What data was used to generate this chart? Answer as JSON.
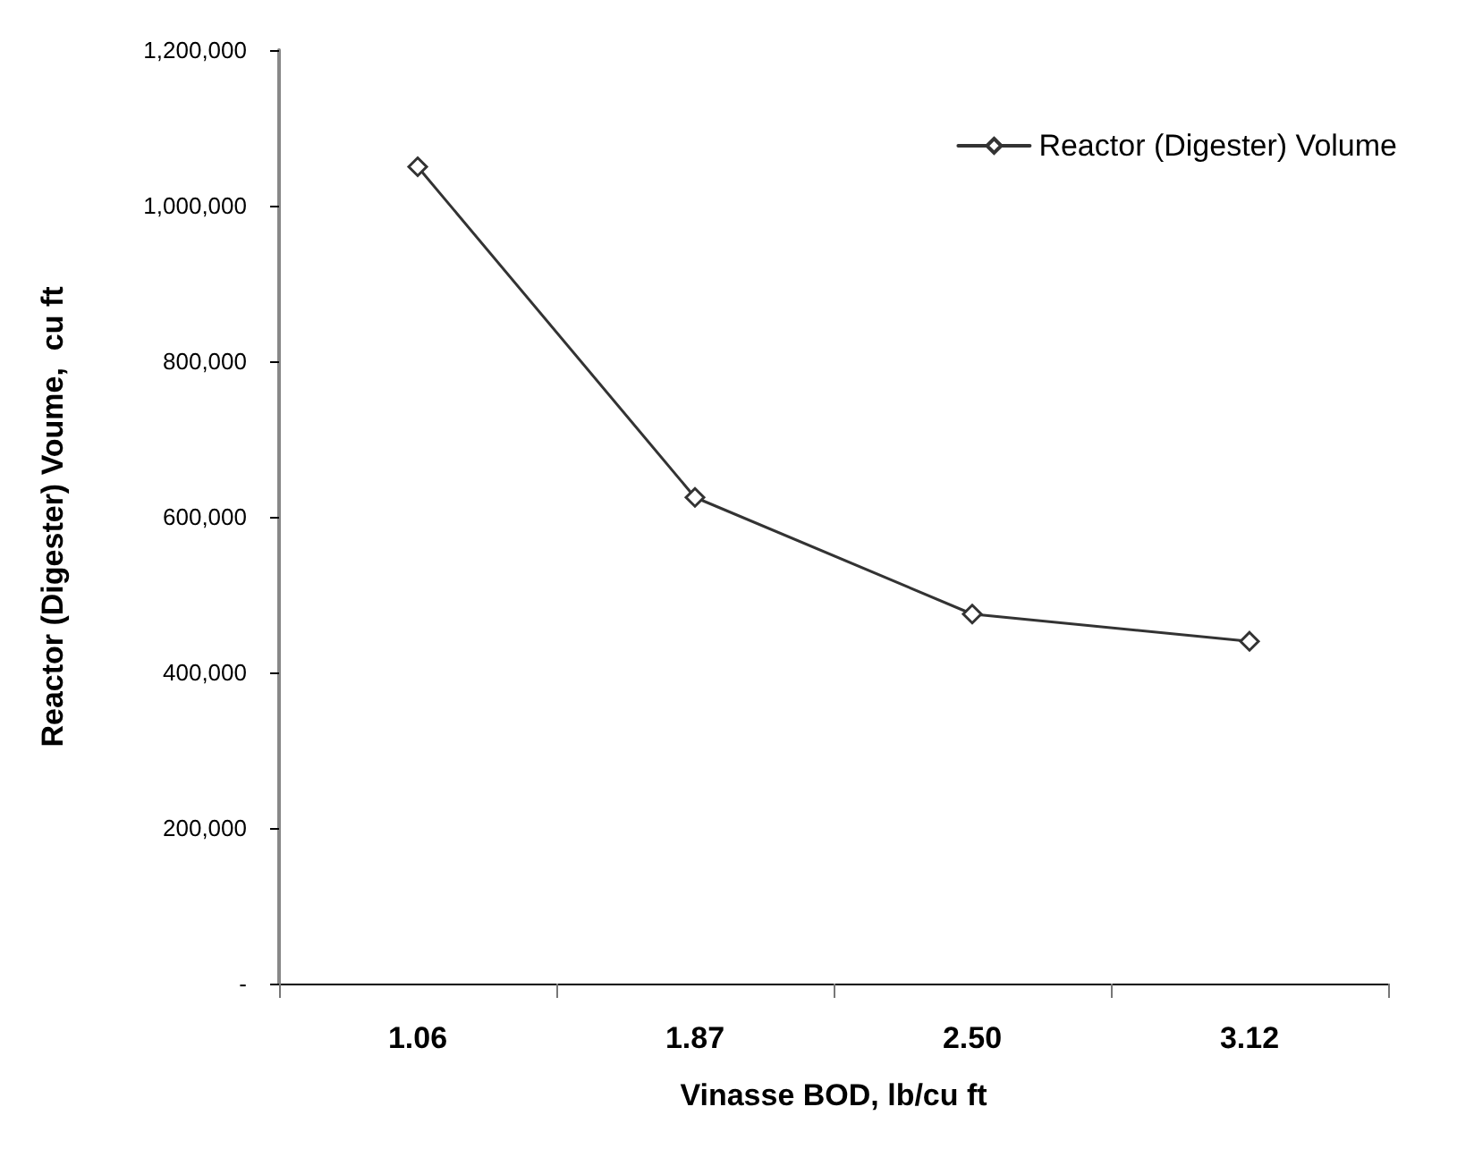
{
  "chart_data": {
    "type": "line",
    "xlabel": "Vinasse BOD, lb/cu ft",
    "ylabel": "Reactor (Digester) Voume,  cu ft",
    "categories": [
      "1.06",
      "1.87",
      "2.50",
      "3.12"
    ],
    "series": [
      {
        "name": "Reactor (Digester) Volume",
        "color": "#333333",
        "values": [
          1050000,
          625000,
          475000,
          440000
        ]
      }
    ],
    "ylim": [
      0,
      1200000
    ],
    "yticks": [
      {
        "value": 0,
        "label": "-"
      },
      {
        "value": 200000,
        "label": "200,000"
      },
      {
        "value": 400000,
        "label": "400,000"
      },
      {
        "value": 600000,
        "label": "600,000"
      },
      {
        "value": 800000,
        "label": "800,000"
      },
      {
        "value": 1000000,
        "label": "1,000,000"
      },
      {
        "value": 1200000,
        "label": "1,200,000"
      }
    ],
    "grid": false,
    "legend": "top right",
    "marker": "diamond",
    "line_style": "solid"
  }
}
